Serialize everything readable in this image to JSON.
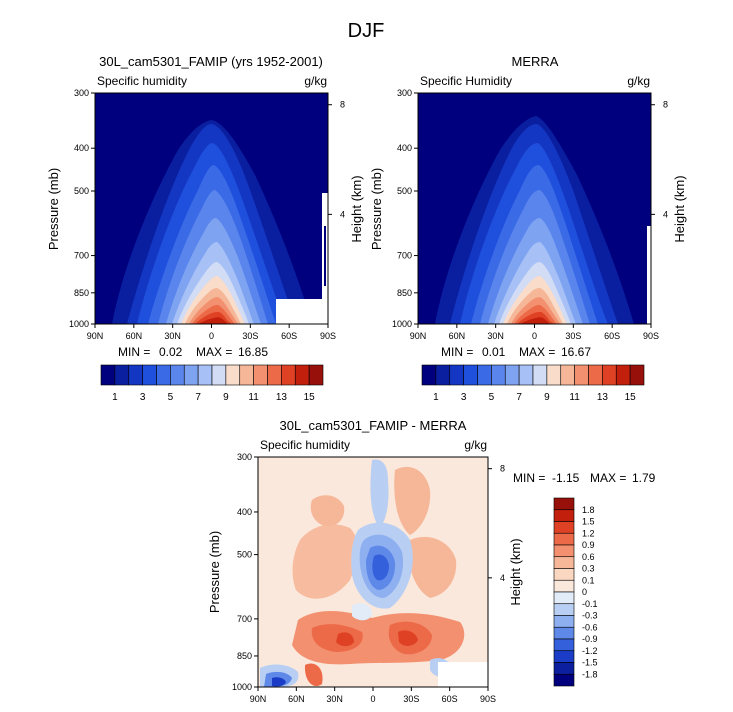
{
  "figure_title": "DJF",
  "chart_data": [
    {
      "type": "contour",
      "title": "30L_cam5301_FAMIP (yrs 1952-2001)",
      "left_label": "Specific humidity",
      "right_label": "g/kg",
      "ylabel": "Pressure (mb)",
      "ylabel_right": "Height (km)",
      "xticks": [
        "90N",
        "60N",
        "30N",
        "0",
        "30S",
        "60S",
        "90S"
      ],
      "yticks": [
        300,
        400,
        500,
        700,
        850,
        1000
      ],
      "height_ticks": [
        8,
        4
      ],
      "min_label": "MIN =",
      "min_value": "0.02",
      "max_label": "MAX =",
      "max_value": "16.85",
      "colorbar": {
        "levels": [
          1,
          2,
          3,
          4,
          5,
          6,
          7,
          8,
          9,
          10,
          11,
          12,
          13,
          14,
          15
        ],
        "tick_labels": [
          "1",
          "3",
          "5",
          "7",
          "9",
          "11",
          "13",
          "15"
        ],
        "colors": [
          "#00007f",
          "#0a1fa0",
          "#1437c3",
          "#1f4fdd",
          "#3b6ae6",
          "#5a85ec",
          "#7ea3f1",
          "#a7c1f6",
          "#d2dcf5",
          "#f9dcc9",
          "#f6b798",
          "#f39070",
          "#ec6a47",
          "#df4125",
          "#c21f0d",
          "#97100a"
        ]
      }
    },
    {
      "type": "contour",
      "title": "MERRA",
      "left_label": "Specific Humidity",
      "right_label": "g/kg",
      "ylabel": "Pressure (mb)",
      "ylabel_right": "Height (km)",
      "xticks": [
        "90N",
        "60N",
        "30N",
        "0",
        "30S",
        "60S",
        "90S"
      ],
      "yticks": [
        300,
        400,
        500,
        700,
        850,
        1000
      ],
      "height_ticks": [
        8,
        4
      ],
      "min_label": "MIN =",
      "min_value": "0.01",
      "max_label": "MAX =",
      "max_value": "16.67",
      "colorbar": {
        "levels": [
          1,
          2,
          3,
          4,
          5,
          6,
          7,
          8,
          9,
          10,
          11,
          12,
          13,
          14,
          15
        ],
        "tick_labels": [
          "1",
          "3",
          "5",
          "7",
          "9",
          "11",
          "13",
          "15"
        ],
        "colors": [
          "#00007f",
          "#0a1fa0",
          "#1437c3",
          "#1f4fdd",
          "#3b6ae6",
          "#5a85ec",
          "#7ea3f1",
          "#a7c1f6",
          "#d2dcf5",
          "#f9dcc9",
          "#f6b798",
          "#f39070",
          "#ec6a47",
          "#df4125",
          "#c21f0d",
          "#97100a"
        ]
      }
    },
    {
      "type": "contour",
      "title": "30L_cam5301_FAMIP - MERRA",
      "left_label": "Specific humidity",
      "right_label": "g/kg",
      "ylabel": "Pressure (mb)",
      "ylabel_right": "Height (km)",
      "xticks": [
        "90N",
        "60N",
        "30N",
        "0",
        "30S",
        "60S",
        "90S"
      ],
      "yticks": [
        300,
        400,
        500,
        700,
        850,
        1000
      ],
      "height_ticks": [
        8,
        4
      ],
      "min_label": "MIN =",
      "min_value": "-1.15",
      "max_label": "MAX =",
      "max_value": "1.79",
      "colorbar": {
        "tick_labels": [
          "1.8",
          "1.5",
          "1.2",
          "0.9",
          "0.6",
          "0.3",
          "0.1",
          "0",
          "-0.1",
          "-0.3",
          "-0.6",
          "-0.9",
          "-1.2",
          "-1.5",
          "-1.8"
        ],
        "colors": [
          "#97100a",
          "#c21f0d",
          "#df4125",
          "#ec6a47",
          "#f39070",
          "#f6b798",
          "#fad7c0",
          "#fbe8dc",
          "#e2ecf8",
          "#b8cff3",
          "#8eaff0",
          "#5e89e8",
          "#3560dc",
          "#1a3cc7",
          "#0b1f9f",
          "#00007f"
        ]
      }
    }
  ]
}
